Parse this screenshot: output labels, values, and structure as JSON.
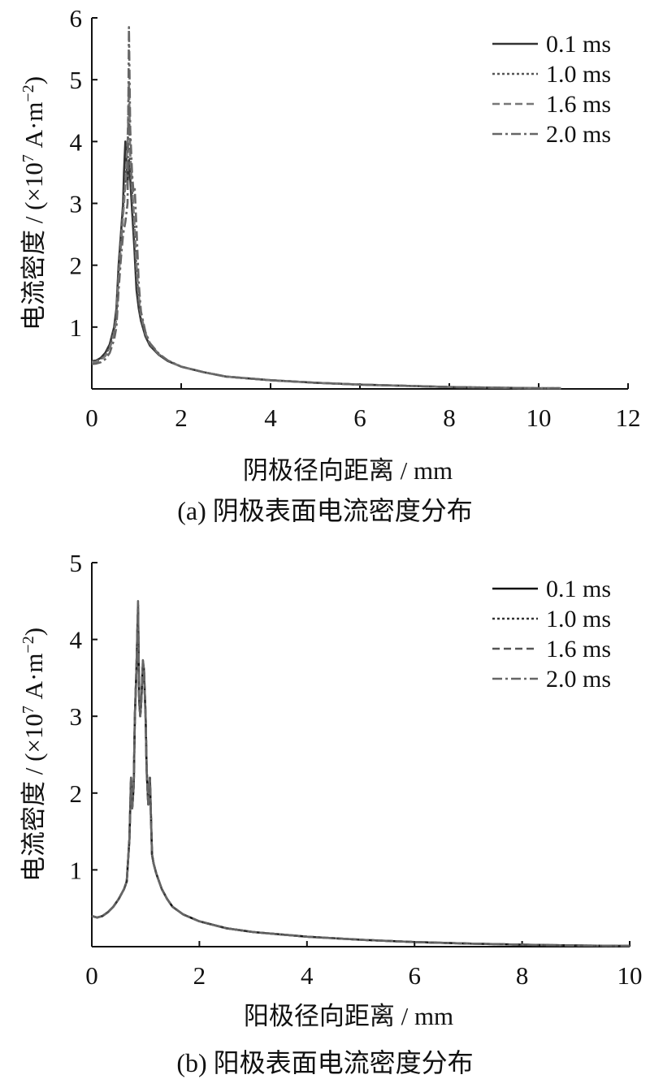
{
  "chart_data": [
    {
      "type": "line",
      "caption": "(a)  阴极表面电流密度分布",
      "xlabel": "阴极径向距离 / mm",
      "ylabel": "电流密度 / (×10^7 A·m^-2)",
      "xlim": [
        0,
        12
      ],
      "ylim": [
        0,
        6
      ],
      "xticks": [
        "0",
        "2",
        "4",
        "6",
        "8",
        "10",
        "12"
      ],
      "yticks": [
        "1",
        "2",
        "3",
        "4",
        "5",
        "6"
      ],
      "grid": false,
      "legend": "top-right",
      "series": [
        {
          "name": "0.1 ms",
          "style": "solid",
          "color": "#333333",
          "x": [
            0,
            0.1,
            0.2,
            0.3,
            0.4,
            0.5,
            0.55,
            0.6,
            0.65,
            0.7,
            0.72,
            0.75,
            0.78,
            0.8,
            0.83,
            0.86,
            0.9,
            0.95,
            1.0,
            1.05,
            1.1,
            1.2,
            1.3,
            1.5,
            1.7,
            2.0,
            2.5,
            3,
            4,
            5,
            6,
            7,
            8,
            9,
            10,
            10.5
          ],
          "y": [
            0.45,
            0.46,
            0.5,
            0.58,
            0.72,
            1.0,
            1.3,
            2.0,
            2.5,
            3.0,
            3.5,
            4.0,
            3.6,
            3.3,
            3.7,
            3.4,
            2.9,
            2.3,
            1.6,
            1.3,
            1.1,
            0.85,
            0.7,
            0.55,
            0.45,
            0.36,
            0.27,
            0.2,
            0.14,
            0.1,
            0.07,
            0.05,
            0.03,
            0.02,
            0.01,
            0.01
          ]
        },
        {
          "name": "1.0 ms",
          "style": "dotted",
          "color": "#555555",
          "x": [
            0,
            0.1,
            0.2,
            0.3,
            0.4,
            0.5,
            0.55,
            0.6,
            0.65,
            0.7,
            0.75,
            0.8,
            0.83,
            0.86,
            0.9,
            0.95,
            1.0,
            1.05,
            1.1,
            1.2,
            1.3,
            1.5,
            1.7,
            2.0,
            2.5,
            3,
            4,
            5,
            6,
            7,
            8,
            9,
            10,
            10.5
          ],
          "y": [
            0.44,
            0.45,
            0.48,
            0.55,
            0.68,
            0.95,
            1.2,
            1.9,
            2.4,
            2.9,
            3.4,
            3.9,
            4.6,
            3.6,
            3.2,
            2.6,
            1.9,
            1.4,
            1.15,
            0.88,
            0.72,
            0.56,
            0.46,
            0.36,
            0.27,
            0.2,
            0.14,
            0.1,
            0.07,
            0.05,
            0.03,
            0.02,
            0.01,
            0.01
          ]
        },
        {
          "name": "1.6 ms",
          "style": "dashed",
          "color": "#777777",
          "x": [
            0,
            0.1,
            0.2,
            0.3,
            0.4,
            0.5,
            0.55,
            0.6,
            0.65,
            0.7,
            0.75,
            0.8,
            0.83,
            0.86,
            0.9,
            0.95,
            1.0,
            1.05,
            1.1,
            1.2,
            1.3,
            1.5,
            1.7,
            2.0,
            2.5,
            3,
            4,
            5,
            6,
            7,
            8,
            9,
            10,
            10.5
          ],
          "y": [
            0.43,
            0.44,
            0.47,
            0.53,
            0.65,
            0.9,
            1.15,
            1.8,
            2.3,
            2.8,
            3.3,
            4.0,
            5.0,
            3.8,
            3.3,
            2.7,
            2.0,
            1.5,
            1.2,
            0.9,
            0.73,
            0.56,
            0.46,
            0.36,
            0.27,
            0.2,
            0.14,
            0.1,
            0.07,
            0.05,
            0.03,
            0.02,
            0.01,
            0.01
          ]
        },
        {
          "name": "2.0 ms",
          "style": "dashdot",
          "color": "#666666",
          "x": [
            0,
            0.1,
            0.2,
            0.3,
            0.4,
            0.5,
            0.55,
            0.6,
            0.65,
            0.7,
            0.75,
            0.8,
            0.83,
            0.86,
            0.9,
            0.93,
            0.96,
            1.0,
            1.05,
            1.1,
            1.2,
            1.3,
            1.5,
            1.7,
            2.0,
            2.5,
            3,
            4,
            5,
            6,
            7,
            8,
            9,
            10,
            10.5
          ],
          "y": [
            0.4,
            0.41,
            0.43,
            0.48,
            0.58,
            0.8,
            1.0,
            1.6,
            2.1,
            2.5,
            2.7,
            3.0,
            5.85,
            4.2,
            3.5,
            3.2,
            3.25,
            2.6,
            1.7,
            1.25,
            0.92,
            0.74,
            0.57,
            0.46,
            0.36,
            0.27,
            0.2,
            0.14,
            0.1,
            0.07,
            0.05,
            0.03,
            0.02,
            0.01,
            0.01
          ]
        }
      ]
    },
    {
      "type": "line",
      "caption": "(b)  阳极表面电流密度分布",
      "xlabel": "阳极径向距离 / mm",
      "ylabel": "电流密度 / (×10^7 A·m^-2)",
      "xlim": [
        0,
        10
      ],
      "ylim": [
        0,
        5
      ],
      "xticks": [
        "0",
        "2",
        "4",
        "6",
        "8",
        "10"
      ],
      "yticks": [
        "1",
        "2",
        "3",
        "4",
        "5"
      ],
      "grid": false,
      "legend": "top-right",
      "series": [
        {
          "name": "0.1 ms",
          "style": "solid",
          "color": "#111111",
          "x": [
            0,
            0.1,
            0.2,
            0.3,
            0.4,
            0.5,
            0.6,
            0.65,
            0.7,
            0.73,
            0.75,
            0.78,
            0.8,
            0.83,
            0.86,
            0.88,
            0.9,
            0.92,
            0.95,
            0.97,
            1.0,
            1.02,
            1.05,
            1.08,
            1.1,
            1.12,
            1.15,
            1.2,
            1.3,
            1.4,
            1.5,
            1.7,
            2.0,
            2.5,
            3,
            4,
            5,
            6,
            7,
            8,
            9,
            10
          ],
          "y": [
            0.4,
            0.38,
            0.4,
            0.45,
            0.52,
            0.62,
            0.75,
            0.85,
            1.4,
            2.2,
            1.8,
            2.1,
            3.0,
            3.6,
            4.4,
            3.2,
            3.0,
            3.2,
            3.7,
            3.6,
            3.0,
            2.3,
            1.85,
            2.2,
            1.7,
            1.2,
            1.08,
            0.95,
            0.75,
            0.62,
            0.52,
            0.42,
            0.33,
            0.24,
            0.19,
            0.13,
            0.09,
            0.06,
            0.04,
            0.025,
            0.015,
            0.01
          ]
        },
        {
          "name": "1.0 ms",
          "style": "dotted",
          "color": "#333333",
          "x": [
            0,
            0.1,
            0.2,
            0.3,
            0.4,
            0.5,
            0.6,
            0.65,
            0.7,
            0.73,
            0.75,
            0.78,
            0.8,
            0.83,
            0.86,
            0.88,
            0.9,
            0.92,
            0.95,
            0.97,
            1.0,
            1.02,
            1.05,
            1.08,
            1.1,
            1.12,
            1.15,
            1.2,
            1.3,
            1.4,
            1.5,
            1.7,
            2.0,
            2.5,
            3,
            4,
            5,
            6,
            7,
            8,
            9,
            10
          ],
          "y": [
            0.4,
            0.38,
            0.4,
            0.45,
            0.52,
            0.62,
            0.75,
            0.85,
            1.4,
            2.2,
            1.8,
            2.1,
            3.0,
            3.6,
            4.45,
            3.2,
            3.0,
            3.2,
            3.72,
            3.6,
            3.0,
            2.3,
            1.85,
            2.2,
            1.7,
            1.2,
            1.08,
            0.95,
            0.75,
            0.62,
            0.52,
            0.42,
            0.33,
            0.24,
            0.19,
            0.13,
            0.09,
            0.06,
            0.04,
            0.025,
            0.015,
            0.01
          ]
        },
        {
          "name": "1.6 ms",
          "style": "dashed",
          "color": "#555555",
          "x": [
            0,
            0.1,
            0.2,
            0.3,
            0.4,
            0.5,
            0.6,
            0.65,
            0.7,
            0.73,
            0.75,
            0.78,
            0.8,
            0.83,
            0.86,
            0.88,
            0.9,
            0.92,
            0.95,
            0.97,
            1.0,
            1.02,
            1.05,
            1.08,
            1.1,
            1.12,
            1.15,
            1.2,
            1.3,
            1.4,
            1.5,
            1.7,
            2.0,
            2.5,
            3,
            4,
            5,
            6,
            7,
            8,
            9,
            10
          ],
          "y": [
            0.4,
            0.38,
            0.4,
            0.45,
            0.52,
            0.62,
            0.75,
            0.85,
            1.4,
            2.2,
            1.8,
            2.1,
            3.0,
            3.6,
            4.45,
            3.2,
            3.0,
            3.2,
            3.72,
            3.6,
            3.0,
            2.3,
            1.85,
            2.2,
            1.7,
            1.2,
            1.08,
            0.95,
            0.75,
            0.62,
            0.52,
            0.42,
            0.33,
            0.24,
            0.19,
            0.13,
            0.09,
            0.06,
            0.04,
            0.025,
            0.015,
            0.01
          ]
        },
        {
          "name": "2.0 ms",
          "style": "dashdot",
          "color": "#666666",
          "x": [
            0,
            0.1,
            0.2,
            0.3,
            0.4,
            0.5,
            0.6,
            0.65,
            0.7,
            0.73,
            0.75,
            0.78,
            0.8,
            0.83,
            0.86,
            0.88,
            0.9,
            0.92,
            0.95,
            0.97,
            1.0,
            1.02,
            1.05,
            1.08,
            1.1,
            1.12,
            1.15,
            1.2,
            1.3,
            1.4,
            1.5,
            1.7,
            2.0,
            2.5,
            3,
            4,
            5,
            6,
            7,
            8,
            9,
            10
          ],
          "y": [
            0.4,
            0.38,
            0.4,
            0.45,
            0.52,
            0.62,
            0.75,
            0.85,
            1.4,
            2.2,
            1.8,
            2.1,
            3.0,
            3.6,
            4.5,
            3.2,
            3.0,
            3.2,
            3.73,
            3.6,
            3.0,
            2.3,
            1.85,
            2.2,
            1.7,
            1.2,
            1.08,
            0.95,
            0.75,
            0.62,
            0.52,
            0.42,
            0.33,
            0.24,
            0.19,
            0.13,
            0.09,
            0.06,
            0.04,
            0.025,
            0.015,
            0.01
          ]
        }
      ]
    }
  ]
}
